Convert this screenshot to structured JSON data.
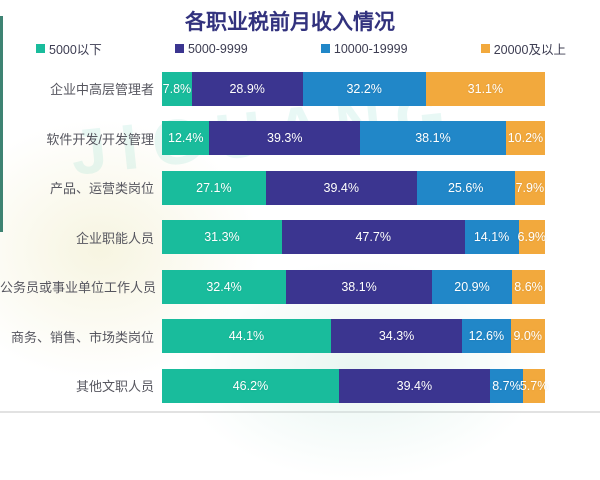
{
  "title": "各职业税前月收入情况",
  "watermark": {
    "text": "JIGUANG"
  },
  "colors": {
    "accent_title": "#32327e",
    "series_under5000": "#19bc9c",
    "series_5000_9999": "#3b3590",
    "series_10000_19999": "#2187c8",
    "series_20000_plus": "#f2a93d"
  },
  "chart_data": {
    "type": "bar",
    "orientation": "horizontal",
    "stacked": true,
    "title": "各职业税前月收入情况",
    "xlabel": "",
    "ylabel": "",
    "xlim": [
      0,
      100
    ],
    "value_suffix": "%",
    "grid": false,
    "legend_position": "top",
    "categories": [
      "企业中高层管理者",
      "软件开发/开发管理",
      "产品、运营类岗位",
      "企业职能人员",
      "公务员或事业单位工作人员",
      "商务、销售、市场类岗位",
      "其他文职人员"
    ],
    "series": [
      {
        "name": "5000以下",
        "color": "#19bc9c",
        "values": [
          7.8,
          12.4,
          27.1,
          31.3,
          32.4,
          44.1,
          46.2
        ]
      },
      {
        "name": "5000-9999",
        "color": "#3b3590",
        "values": [
          28.9,
          39.3,
          39.4,
          47.7,
          38.1,
          34.3,
          39.4
        ]
      },
      {
        "name": "10000-19999",
        "color": "#2187c8",
        "values": [
          32.2,
          38.1,
          25.6,
          14.1,
          20.9,
          12.6,
          8.7
        ]
      },
      {
        "name": "20000及以上",
        "color": "#f2a93d",
        "values": [
          31.1,
          10.2,
          7.9,
          6.9,
          8.6,
          9.0,
          5.7
        ]
      }
    ]
  }
}
